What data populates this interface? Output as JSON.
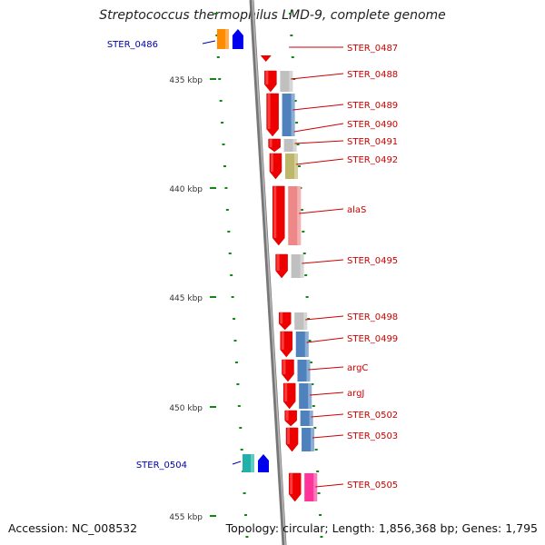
{
  "title": "Streptococcus thermophilus LMD-9, complete genome",
  "footer": {
    "accession": "Accession: NC_008532",
    "stats": "Topology: circular; Length: 1,856,368 bp; Genes: 1,795"
  },
  "colors": {
    "backbone": "#888888",
    "forward_gene": "#ee0000",
    "label_right": "#cc0000",
    "label_left": "#0000aa",
    "tick": "#118811",
    "cog_grey": "#c0c0c0",
    "cog_blue": "#4f81bd",
    "cog_olive": "#bdb76b",
    "cog_pink": "#ee8888",
    "cog_magenta": "#ff3399",
    "cog_orange": "#ff8c00",
    "cog_cyan": "#20b2aa"
  },
  "scale_labels": [
    "435 kbp",
    "440 kbp",
    "445 kbp",
    "450 kbp",
    "455 kbp"
  ],
  "genes_right": [
    {
      "label": "STER_0487",
      "cog": "none"
    },
    {
      "label": "STER_0488",
      "cog": "grey"
    },
    {
      "label": "STER_0489",
      "cog": "blue"
    },
    {
      "label": "STER_0490",
      "cog": "none"
    },
    {
      "label": "STER_0491",
      "cog": "grey"
    },
    {
      "label": "STER_0492",
      "cog": "olive"
    },
    {
      "label": "alaS",
      "cog": "pink"
    },
    {
      "label": "STER_0495",
      "cog": "grey"
    },
    {
      "label": "STER_0498",
      "cog": "grey"
    },
    {
      "label": "STER_0499",
      "cog": "blue"
    },
    {
      "label": "argC",
      "cog": "blue"
    },
    {
      "label": "argJ",
      "cog": "blue"
    },
    {
      "label": "STER_0502",
      "cog": "blue"
    },
    {
      "label": "STER_0503",
      "cog": "blue"
    },
    {
      "label": "STER_0505",
      "cog": "magenta"
    }
  ],
  "genes_left": [
    {
      "label": "STER_0486",
      "cog": "orange"
    },
    {
      "label": "STER_0504",
      "cog": "cyan"
    }
  ]
}
